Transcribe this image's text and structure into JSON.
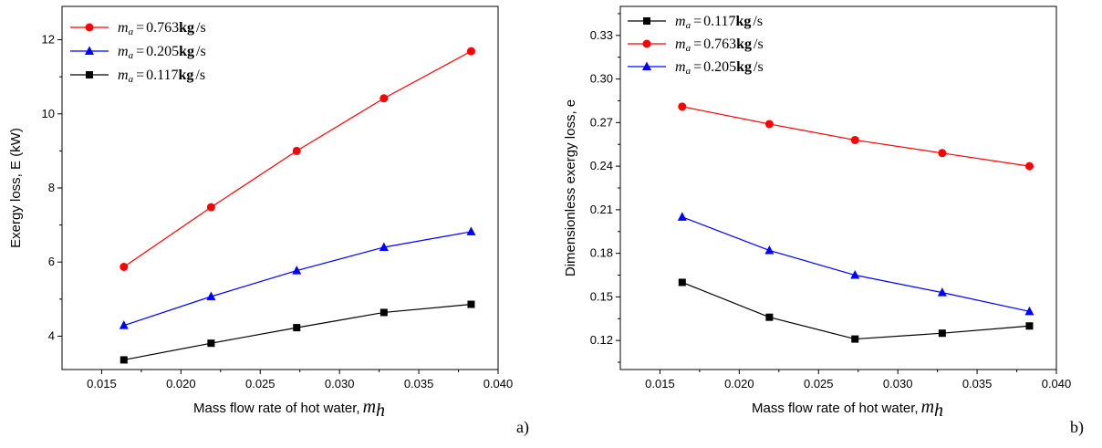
{
  "colors": {
    "red": "#ff0000",
    "blue": "#0000ff",
    "black": "#000000"
  },
  "chart_data": [
    {
      "type": "line",
      "panel_label": "a)",
      "xlabel": "Mass flow rate of hot water,",
      "xlabel_symbol": "m",
      "xlabel_sub": "h",
      "ylabel": "Exergy loss, E (kW)",
      "xlim": [
        0.0125,
        0.04
      ],
      "ylim": [
        3.1,
        12.9
      ],
      "xticks": [
        0.015,
        0.02,
        0.025,
        0.03,
        0.035,
        0.04
      ],
      "xtick_labels": [
        "0.015",
        "0.020",
        "0.025",
        "0.030",
        "0.035",
        "0.040"
      ],
      "yticks": [
        4,
        6,
        8,
        10,
        12
      ],
      "ytick_labels": [
        "4",
        "6",
        "8",
        "10",
        "12"
      ],
      "x": [
        0.0164,
        0.0219,
        0.0273,
        0.0328,
        0.0383
      ],
      "legend_position": "top-left",
      "series": [
        {
          "name": "0.763",
          "color_key": "red",
          "marker": "circle",
          "values": [
            5.87,
            7.48,
            9.0,
            10.42,
            11.69
          ]
        },
        {
          "name": "0.205",
          "color_key": "blue",
          "marker": "triangle",
          "values": [
            4.29,
            5.07,
            5.77,
            6.4,
            6.82
          ]
        },
        {
          "name": "0.117",
          "color_key": "black",
          "marker": "square",
          "values": [
            3.36,
            3.81,
            4.23,
            4.64,
            4.86
          ]
        }
      ]
    },
    {
      "type": "line",
      "panel_label": "b)",
      "xlabel": "Mass flow rate of hot water,",
      "xlabel_symbol": "m",
      "xlabel_sub": "h",
      "ylabel": "Dimensionless exergy loss, e",
      "xlim": [
        0.0125,
        0.04
      ],
      "ylim": [
        0.1,
        0.35
      ],
      "xticks": [
        0.015,
        0.02,
        0.025,
        0.03,
        0.035,
        0.04
      ],
      "xtick_labels": [
        "0.015",
        "0.020",
        "0.025",
        "0.030",
        "0.035",
        "0.040"
      ],
      "yticks": [
        0.12,
        0.15,
        0.18,
        0.21,
        0.24,
        0.27,
        0.3,
        0.33
      ],
      "ytick_labels": [
        "0.12",
        "0.15",
        "0.18",
        "0.21",
        "0.24",
        "0.27",
        "0.30",
        "0.33"
      ],
      "x": [
        0.0164,
        0.0219,
        0.0273,
        0.0328,
        0.0383
      ],
      "legend_position": "top-left",
      "series": [
        {
          "name": "0.117",
          "color_key": "black",
          "marker": "square",
          "values": [
            0.16,
            0.136,
            0.121,
            0.125,
            0.13
          ]
        },
        {
          "name": "0.763",
          "color_key": "red",
          "marker": "circle",
          "values": [
            0.281,
            0.269,
            0.258,
            0.249,
            0.24
          ]
        },
        {
          "name": "0.205",
          "color_key": "blue",
          "marker": "triangle",
          "values": [
            0.205,
            0.182,
            0.165,
            0.153,
            0.14
          ]
        }
      ]
    }
  ],
  "legend_text": {
    "symbol": "m",
    "sub": "a",
    "eq": "=",
    "unit_bold": "kg",
    "unit_tail": "/s"
  }
}
